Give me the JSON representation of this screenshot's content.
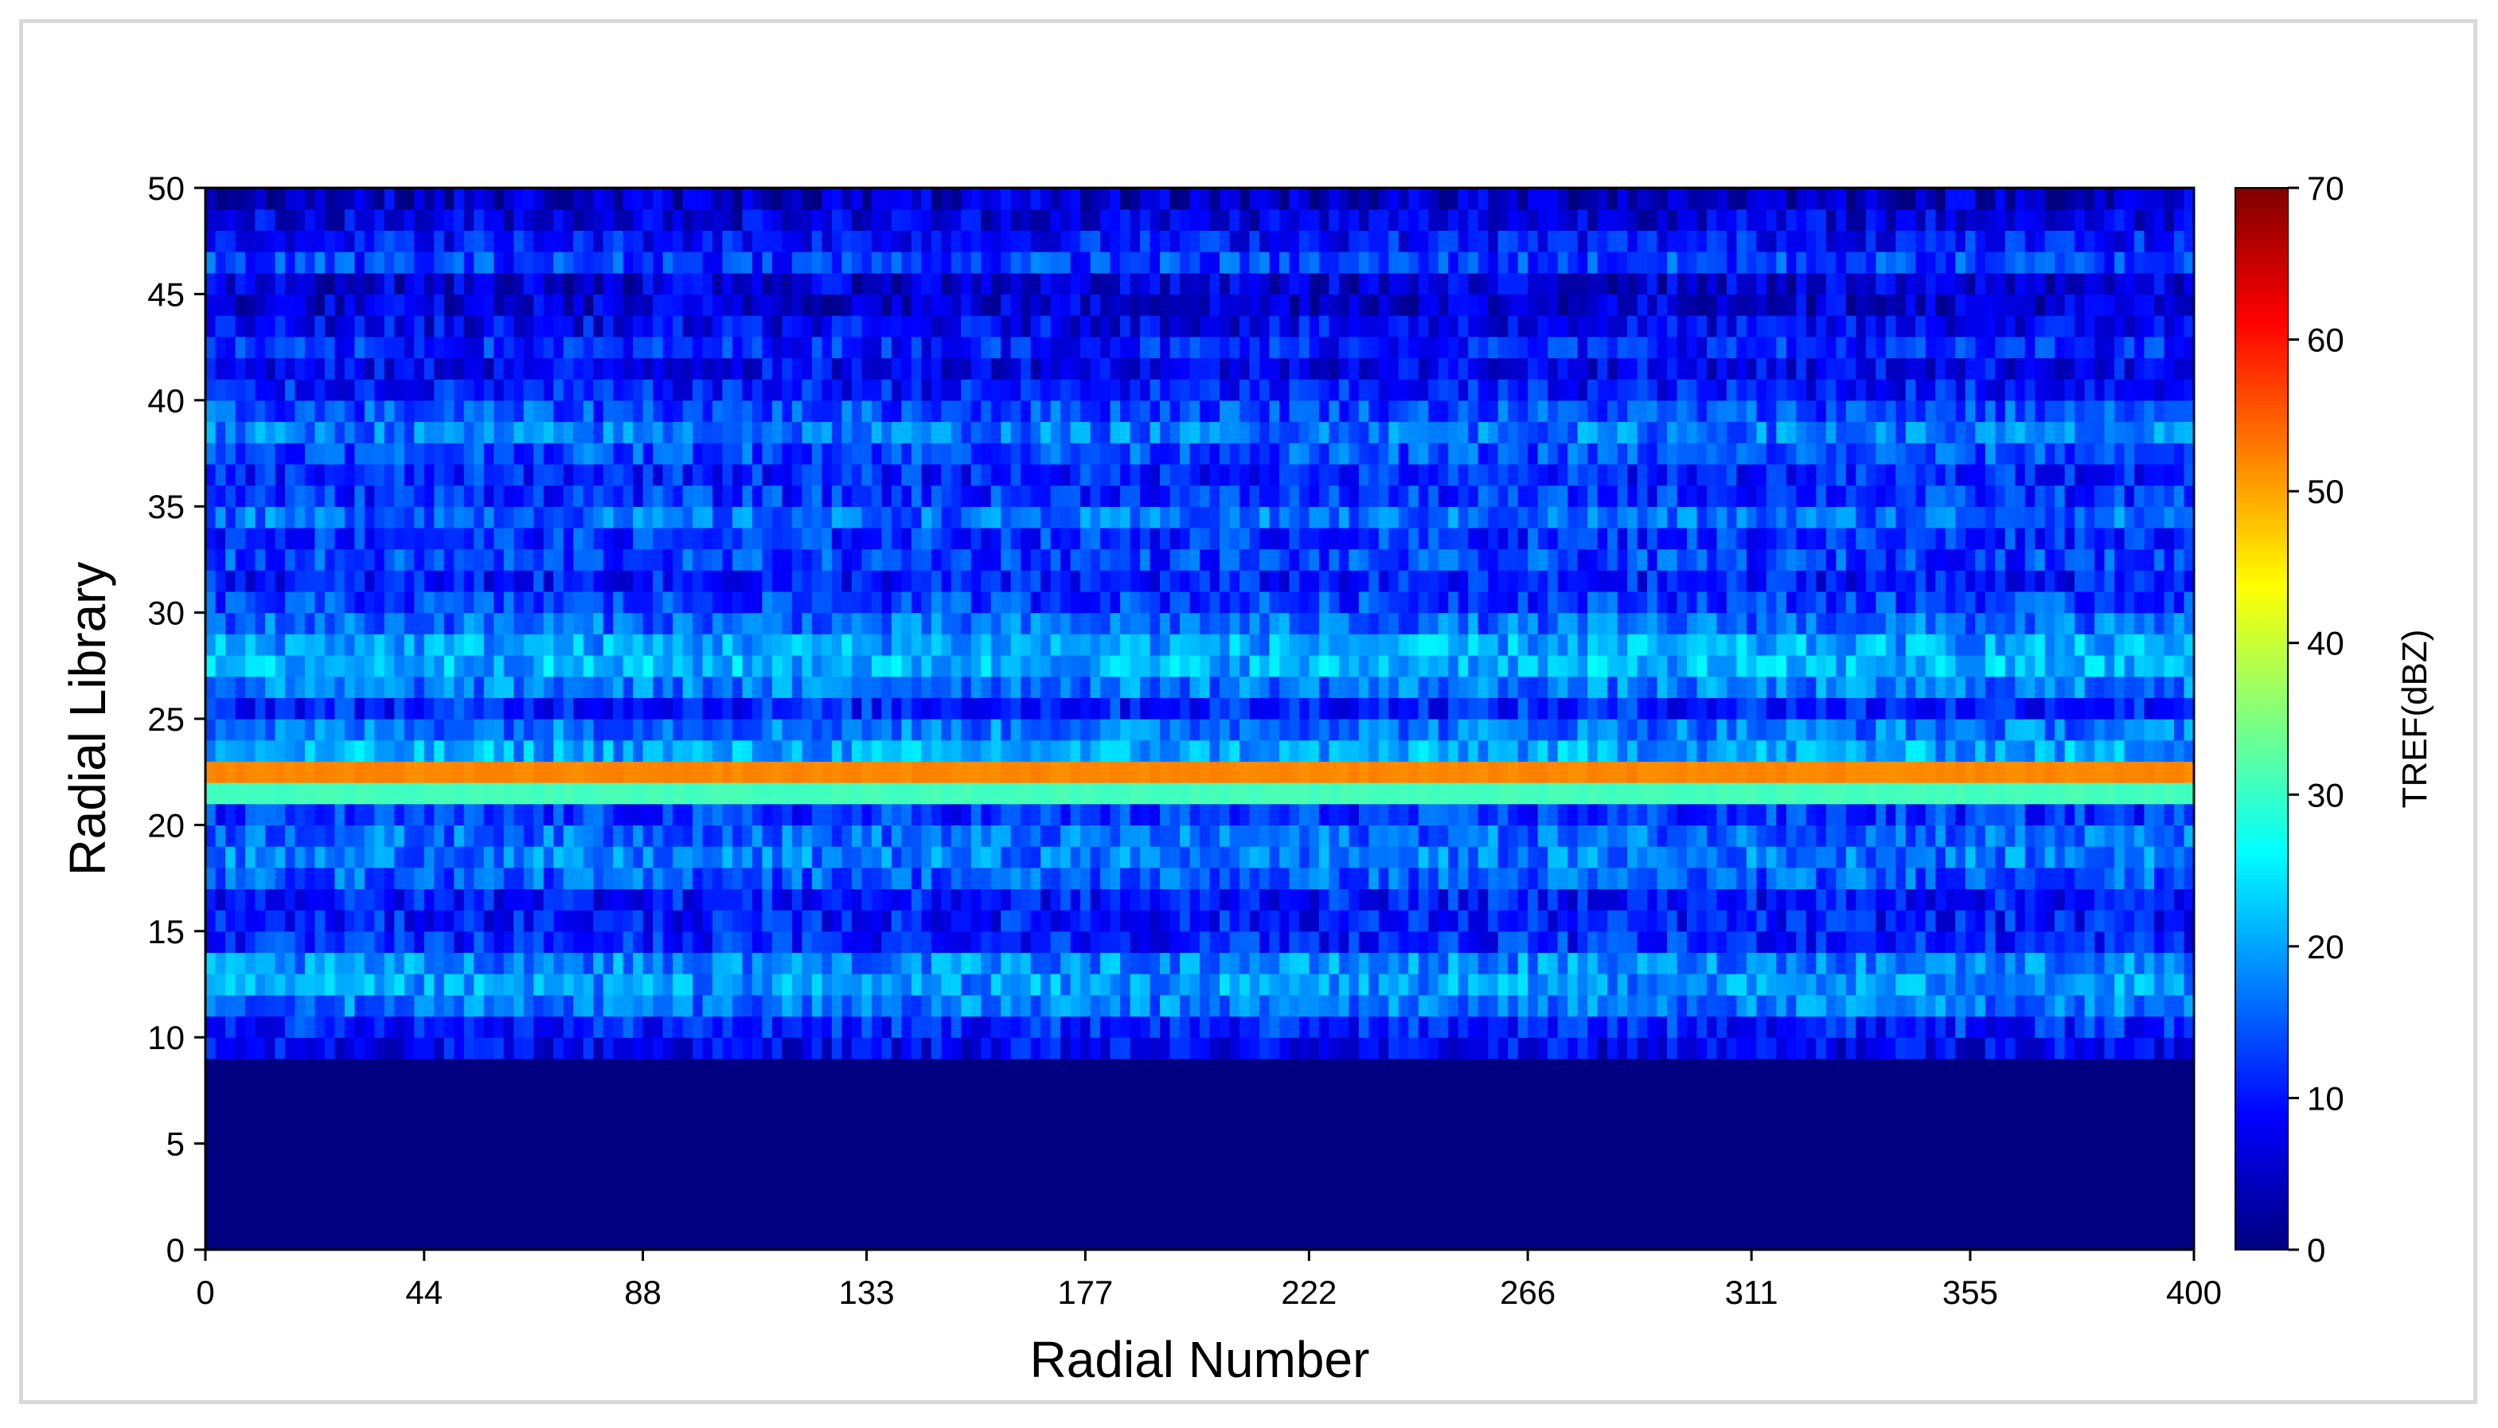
{
  "chart_data": {
    "type": "heatmap",
    "title": "",
    "xlabel": "Radial Number",
    "ylabel": "Radial Library",
    "xlim": [
      0,
      400
    ],
    "ylim": [
      0,
      50
    ],
    "xticks": [
      "0",
      "44",
      "88",
      "133",
      "177",
      "222",
      "266",
      "311",
      "355",
      "400"
    ],
    "yticks": [
      "0",
      "5",
      "10",
      "15",
      "20",
      "25",
      "30",
      "35",
      "40",
      "45",
      "50"
    ],
    "n_radials": 400,
    "n_bins": 50,
    "row_means_dbz": [
      0,
      0,
      0,
      0,
      0,
      0,
      0,
      0,
      0,
      8,
      11,
      17,
      19,
      18,
      11,
      10,
      10,
      15,
      17,
      16,
      12,
      31,
      52,
      20,
      17,
      11,
      17,
      21,
      20,
      16,
      13,
      10,
      13,
      12,
      16,
      12,
      11,
      14,
      17,
      14,
      10,
      8,
      11,
      8,
      6,
      6,
      13,
      10,
      7,
      5
    ],
    "colorbar": {
      "label": "TREF(dBZ)",
      "range": [
        0,
        70
      ],
      "ticks": [
        "0",
        "10",
        "20",
        "30",
        "40",
        "50",
        "60",
        "70"
      ],
      "colormap": [
        "#00007f",
        "#0000ff",
        "#007fff",
        "#00ffff",
        "#7fff7f",
        "#ffff00",
        "#ff7f00",
        "#ff0000",
        "#7f0000"
      ]
    },
    "grid": false,
    "legend": "none"
  }
}
